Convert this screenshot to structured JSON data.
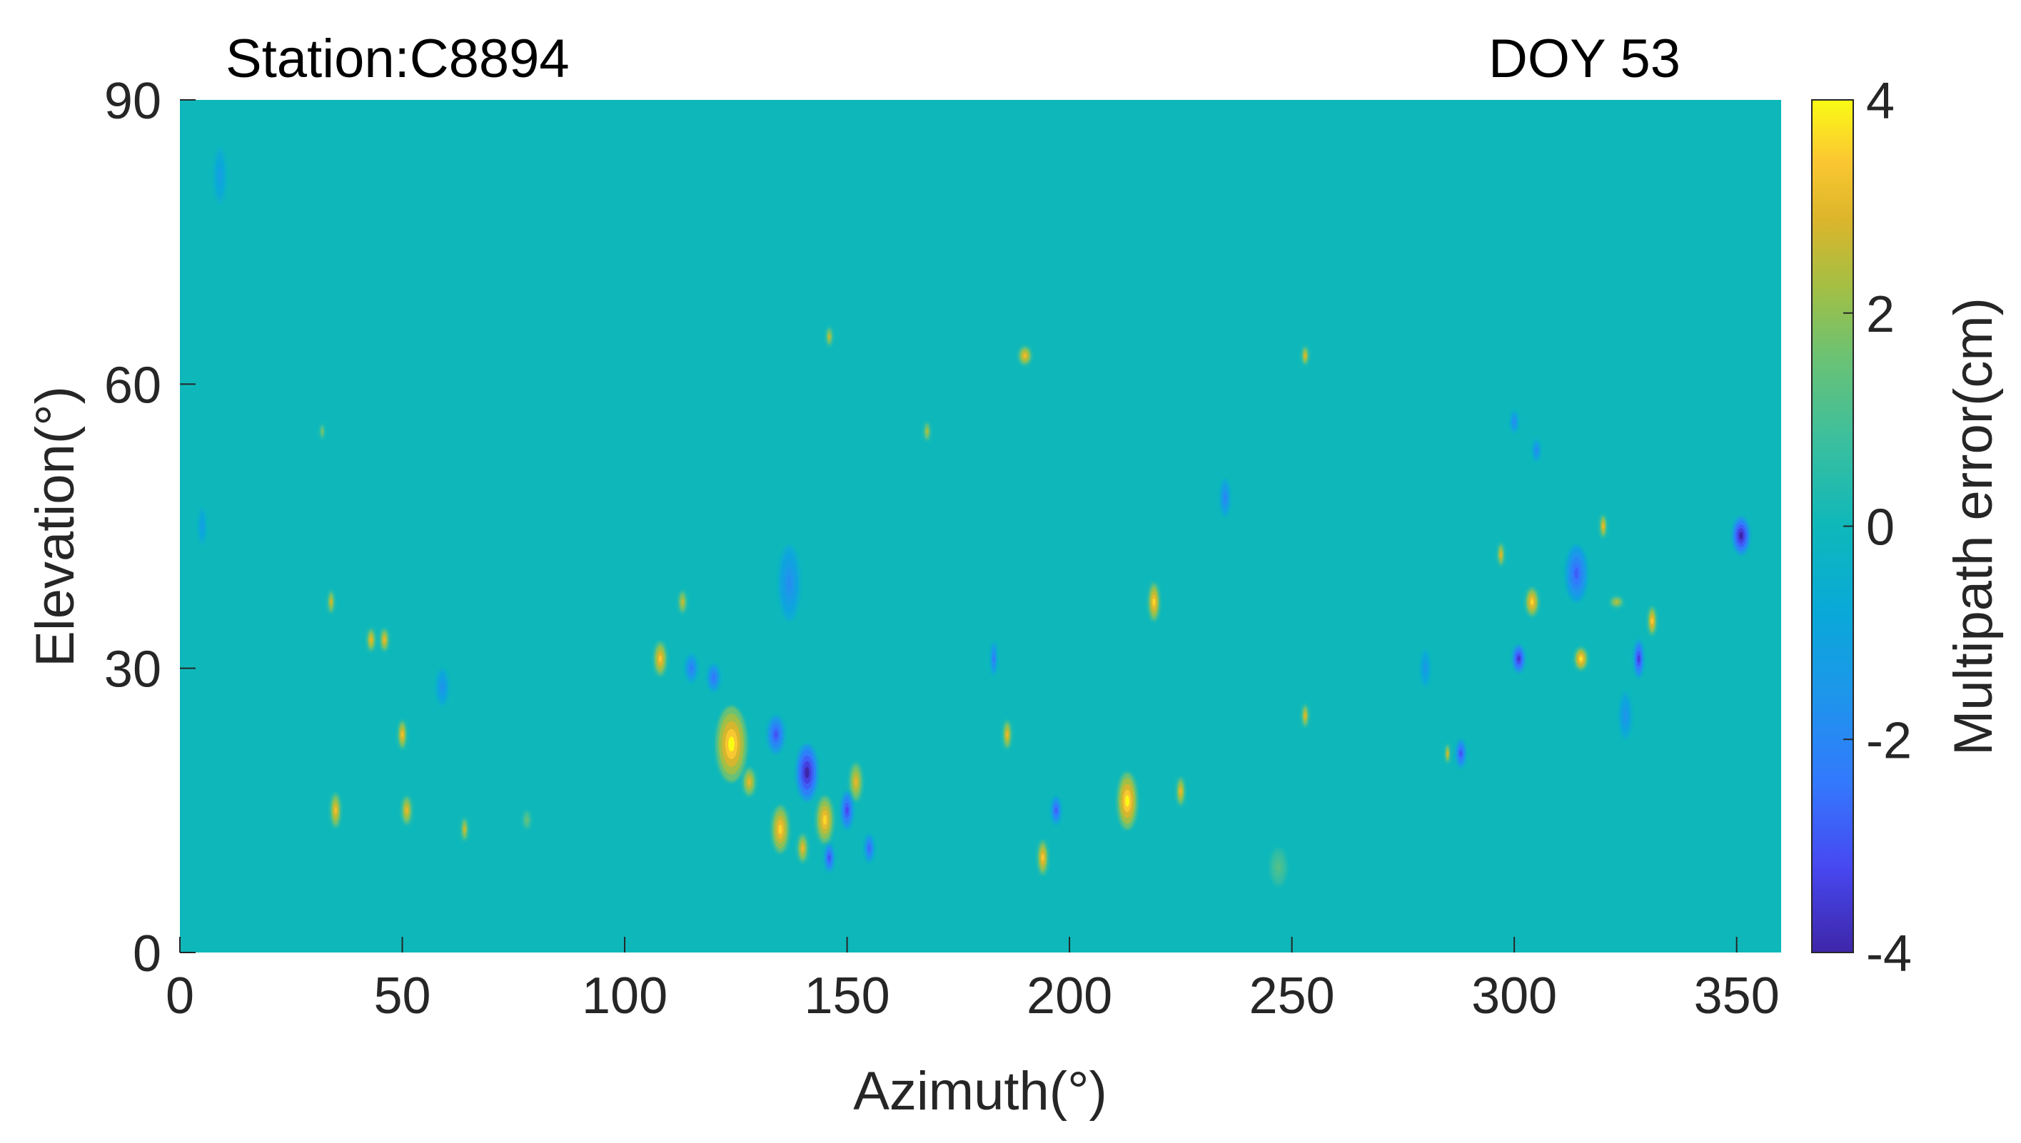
{
  "chart_data": {
    "type": "heatmap",
    "title_left": "Station:C8894",
    "title_right": "DOY 53",
    "xlabel": "Azimuth(°)",
    "ylabel": "Elevation(°)",
    "xlim": [
      0,
      360
    ],
    "ylim": [
      0,
      90
    ],
    "xticks": [
      0,
      50,
      100,
      150,
      200,
      250,
      300,
      350
    ],
    "yticks": [
      0,
      30,
      60,
      90
    ],
    "colorbar": {
      "label": "Multipath error(cm)",
      "range": [
        -4,
        4
      ],
      "ticks": [
        4,
        2,
        0,
        -2,
        -4
      ]
    },
    "background_value": 0,
    "features": [
      {
        "az": 124,
        "el": 22,
        "value": 4.0,
        "size_az": 3.5,
        "size_el": 4.0
      },
      {
        "az": 141,
        "el": 19,
        "value": -4.0,
        "size_az": 2.5,
        "size_el": 3.0
      },
      {
        "az": 134,
        "el": 23,
        "value": -3.0,
        "size_az": 2.0,
        "size_el": 2.0
      },
      {
        "az": 135,
        "el": 13,
        "value": 3.6,
        "size_az": 2.0,
        "size_el": 2.5
      },
      {
        "az": 145,
        "el": 14,
        "value": 3.6,
        "size_az": 2.0,
        "size_el": 2.5
      },
      {
        "az": 128,
        "el": 18,
        "value": 3.0,
        "size_az": 1.5,
        "size_el": 1.5
      },
      {
        "az": 152,
        "el": 18,
        "value": 3.0,
        "size_az": 1.5,
        "size_el": 2.0
      },
      {
        "az": 150,
        "el": 15,
        "value": -3.2,
        "size_az": 1.5,
        "size_el": 2.0
      },
      {
        "az": 140,
        "el": 11,
        "value": 3.0,
        "size_az": 1.2,
        "size_el": 1.5
      },
      {
        "az": 146,
        "el": 10,
        "value": -3.0,
        "size_az": 1.2,
        "size_el": 1.5
      },
      {
        "az": 155,
        "el": 11,
        "value": -2.6,
        "size_az": 1.2,
        "size_el": 1.5
      },
      {
        "az": 137,
        "el": 39,
        "value": -1.8,
        "size_az": 2.5,
        "size_el": 4.0
      },
      {
        "az": 108,
        "el": 31,
        "value": 3.4,
        "size_az": 1.5,
        "size_el": 1.8
      },
      {
        "az": 113,
        "el": 37,
        "value": 2.5,
        "size_az": 1.0,
        "size_el": 1.2
      },
      {
        "az": 115,
        "el": 30,
        "value": -2.2,
        "size_az": 1.5,
        "size_el": 1.5
      },
      {
        "az": 120,
        "el": 29,
        "value": -2.4,
        "size_az": 1.5,
        "size_el": 1.5
      },
      {
        "az": 35,
        "el": 15,
        "value": 3.2,
        "size_az": 1.2,
        "size_el": 1.8
      },
      {
        "az": 51,
        "el": 15,
        "value": 3.0,
        "size_az": 1.2,
        "size_el": 1.5
      },
      {
        "az": 50,
        "el": 23,
        "value": 3.2,
        "size_az": 1.0,
        "size_el": 1.5
      },
      {
        "az": 43,
        "el": 33,
        "value": 3.0,
        "size_az": 1.0,
        "size_el": 1.2
      },
      {
        "az": 46,
        "el": 33,
        "value": 3.0,
        "size_az": 1.0,
        "size_el": 1.2
      },
      {
        "az": 34,
        "el": 37,
        "value": 2.6,
        "size_az": 0.8,
        "size_el": 1.2
      },
      {
        "az": 64,
        "el": 13,
        "value": 2.6,
        "size_az": 0.8,
        "size_el": 1.2
      },
      {
        "az": 59,
        "el": 28,
        "value": -1.6,
        "size_az": 1.5,
        "size_el": 2.0
      },
      {
        "az": 213,
        "el": 16,
        "value": 4.0,
        "size_az": 2.3,
        "size_el": 3.0
      },
      {
        "az": 219,
        "el": 37,
        "value": 3.6,
        "size_az": 1.3,
        "size_el": 2.0
      },
      {
        "az": 225,
        "el": 17,
        "value": 3.0,
        "size_az": 1.0,
        "size_el": 1.5
      },
      {
        "az": 186,
        "el": 23,
        "value": 3.0,
        "size_az": 1.0,
        "size_el": 1.5
      },
      {
        "az": 194,
        "el": 10,
        "value": 3.4,
        "size_az": 1.2,
        "size_el": 1.8
      },
      {
        "az": 197,
        "el": 15,
        "value": -2.8,
        "size_az": 1.2,
        "size_el": 1.5
      },
      {
        "az": 190,
        "el": 63,
        "value": 3.2,
        "size_az": 1.5,
        "size_el": 1.0
      },
      {
        "az": 146,
        "el": 65,
        "value": 2.4,
        "size_az": 0.8,
        "size_el": 1.0
      },
      {
        "az": 168,
        "el": 55,
        "value": 2.2,
        "size_az": 0.8,
        "size_el": 1.0
      },
      {
        "az": 253,
        "el": 63,
        "value": 2.8,
        "size_az": 0.8,
        "size_el": 1.0
      },
      {
        "az": 253,
        "el": 25,
        "value": 2.8,
        "size_az": 0.8,
        "size_el": 1.2
      },
      {
        "az": 235,
        "el": 48,
        "value": -2.0,
        "size_az": 1.2,
        "size_el": 2.0
      },
      {
        "az": 183,
        "el": 31,
        "value": -2.2,
        "size_az": 0.8,
        "size_el": 1.8
      },
      {
        "az": 351,
        "el": 44,
        "value": -4.0,
        "size_az": 2.0,
        "size_el": 2.0
      },
      {
        "az": 304,
        "el": 37,
        "value": 3.6,
        "size_az": 1.5,
        "size_el": 1.5
      },
      {
        "az": 315,
        "el": 31,
        "value": 3.8,
        "size_az": 1.5,
        "size_el": 1.2
      },
      {
        "az": 301,
        "el": 31,
        "value": -3.6,
        "size_az": 1.5,
        "size_el": 1.5
      },
      {
        "az": 314,
        "el": 40,
        "value": -2.8,
        "size_az": 2.5,
        "size_el": 3.0
      },
      {
        "az": 320,
        "el": 45,
        "value": 3.0,
        "size_az": 0.8,
        "size_el": 1.2
      },
      {
        "az": 331,
        "el": 35,
        "value": 3.4,
        "size_az": 1.0,
        "size_el": 1.5
      },
      {
        "az": 328,
        "el": 31,
        "value": -3.4,
        "size_az": 1.2,
        "size_el": 2.0
      },
      {
        "az": 323,
        "el": 37,
        "value": 2.4,
        "size_az": 1.5,
        "size_el": 0.6
      },
      {
        "az": 297,
        "el": 42,
        "value": 2.8,
        "size_az": 0.8,
        "size_el": 1.2
      },
      {
        "az": 288,
        "el": 21,
        "value": -3.0,
        "size_az": 1.2,
        "size_el": 1.5
      },
      {
        "az": 285,
        "el": 21,
        "value": 2.6,
        "size_az": 0.6,
        "size_el": 1.0
      },
      {
        "az": 325,
        "el": 25,
        "value": -1.6,
        "size_az": 1.5,
        "size_el": 2.5
      },
      {
        "az": 300,
        "el": 56,
        "value": -1.8,
        "size_az": 1.0,
        "size_el": 1.2
      },
      {
        "az": 305,
        "el": 53,
        "value": -1.8,
        "size_az": 1.0,
        "size_el": 1.2
      },
      {
        "az": 280,
        "el": 30,
        "value": -1.4,
        "size_az": 1.2,
        "size_el": 2.0
      },
      {
        "az": 9,
        "el": 82,
        "value": -1.2,
        "size_az": 1.5,
        "size_el": 3.0
      },
      {
        "az": 5,
        "el": 45,
        "value": -1.2,
        "size_az": 1.0,
        "size_el": 2.0
      },
      {
        "az": 32,
        "el": 55,
        "value": 1.6,
        "size_az": 0.6,
        "size_el": 0.8
      },
      {
        "az": 78,
        "el": 14,
        "value": 1.4,
        "size_az": 1.0,
        "size_el": 1.0
      },
      {
        "az": 247,
        "el": 9,
        "value": 1.2,
        "size_az": 2.0,
        "size_el": 2.0
      }
    ]
  }
}
